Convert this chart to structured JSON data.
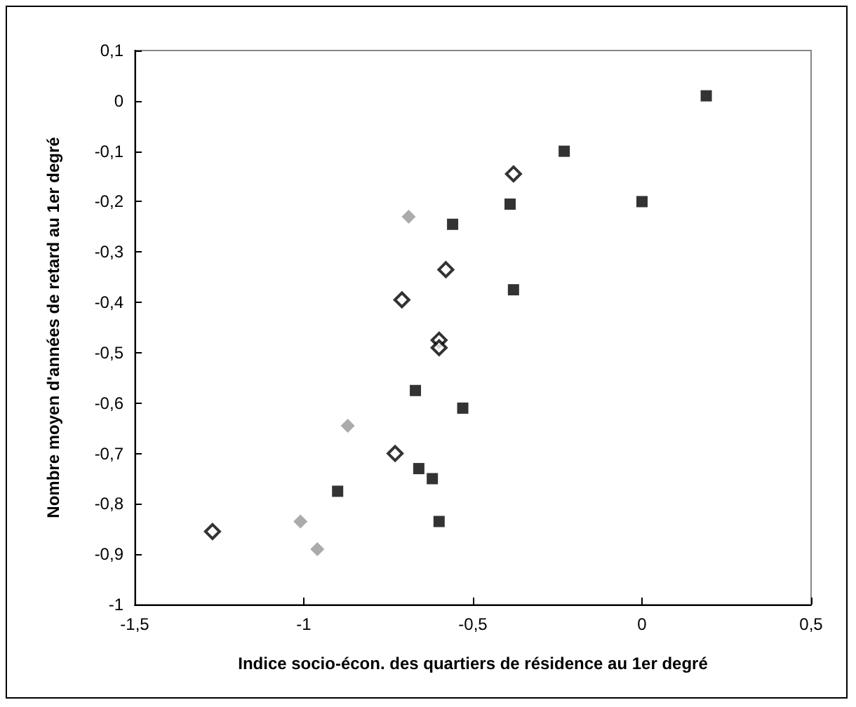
{
  "chart_data": {
    "type": "scatter",
    "xlabel": "Indice socio-écon. des quartiers de résidence au 1er degré",
    "ylabel": "Nombre moyen d'années de retard au 1er degré",
    "series": [
      {
        "marker": "square",
        "color": "#000000",
        "x": [
          0.19,
          -0.23,
          0.0,
          -0.39,
          -0.56,
          -0.38,
          -0.67,
          -0.53,
          -0.66,
          -0.62,
          -0.9,
          -0.6
        ],
        "values": [
          0.01,
          -0.1,
          -0.2,
          -0.205,
          -0.245,
          -0.375,
          -0.575,
          -0.61,
          -0.73,
          -0.75,
          -0.775,
          -0.835
        ]
      },
      {
        "marker": "diamond",
        "color": "#000000",
        "x": [
          -0.38,
          -0.58,
          -0.71,
          -0.6,
          -0.6,
          -0.73,
          -1.27
        ],
        "values": [
          -0.145,
          -0.335,
          -0.395,
          -0.475,
          -0.49,
          -0.7,
          -0.855
        ]
      },
      {
        "marker": "diamond",
        "color": "#969696",
        "x": [
          -0.69,
          -0.87,
          -1.01,
          -0.96
        ],
        "values": [
          -0.23,
          -0.645,
          -0.835,
          -0.89
        ]
      }
    ],
    "xlim": [
      -1.5,
      0.5
    ],
    "xticks": [
      {
        "value": -1.5,
        "label": "-1,5"
      },
      -1,
      {
        "value": -0.5,
        "label": "-0,5"
      },
      0,
      {
        "value": 0.5,
        "label": "0,5"
      }
    ],
    "ylim": [
      -1,
      0.1
    ],
    "yticks": [
      -1,
      {
        "value": -0.9,
        "label": "-0,9"
      },
      {
        "value": -0.8,
        "label": "-0,8"
      },
      {
        "value": -0.7,
        "label": "-0,7"
      },
      {
        "value": -0.6,
        "label": "-0,6"
      },
      {
        "value": -0.5,
        "label": "-0,5"
      },
      {
        "value": -0.4,
        "label": "-0,4"
      },
      {
        "value": -0.3,
        "label": "-0,3"
      },
      {
        "value": -0.2,
        "label": "-0,2"
      },
      {
        "value": -0.1,
        "label": "-0,1"
      },
      0,
      {
        "value": 0.1,
        "label": "0,1"
      }
    ],
    "grid": false
  }
}
